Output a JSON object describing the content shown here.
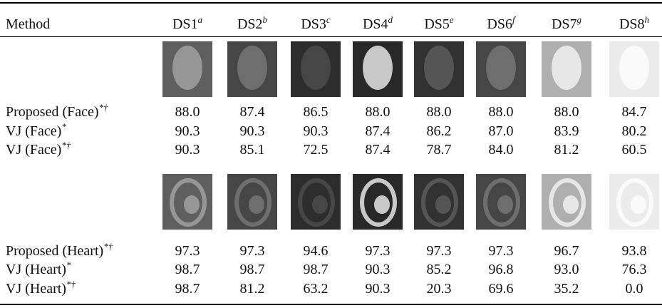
{
  "header": {
    "columns": [
      {
        "text": "Method"
      },
      {
        "text": "DS1",
        "sup": "a"
      },
      {
        "text": "DS2",
        "sup": "b"
      },
      {
        "text": "DS3",
        "sup": "c"
      },
      {
        "text": "DS4",
        "sup": "d"
      },
      {
        "text": "DS5",
        "sup": "e"
      },
      {
        "text": "DS6",
        "sup": "f"
      },
      {
        "text": "DS7",
        "sup": "g"
      },
      {
        "text": "DS8",
        "sup": "h"
      }
    ]
  },
  "sections": [
    {
      "kind": "face",
      "rows": [
        {
          "label": "Proposed (Face)",
          "sup": "*†",
          "values": [
            "88.0",
            "87.4",
            "86.5",
            "88.0",
            "88.0",
            "88.0",
            "88.0",
            "84.7"
          ]
        },
        {
          "label": "VJ (Face)",
          "sup": "*",
          "values": [
            "90.3",
            "90.3",
            "90.3",
            "87.4",
            "86.2",
            "87.0",
            "83.9",
            "80.2"
          ]
        },
        {
          "label": "VJ (Face)",
          "sup": "*†",
          "values": [
            "90.3",
            "85.1",
            "72.5",
            "87.4",
            "78.7",
            "84.0",
            "81.2",
            "60.5"
          ]
        }
      ]
    },
    {
      "kind": "heart",
      "rows": [
        {
          "label": "Proposed (Heart)",
          "sup": "*†",
          "values": [
            "97.3",
            "97.3",
            "94.6",
            "97.3",
            "97.3",
            "97.3",
            "96.7",
            "93.8"
          ]
        },
        {
          "label": "VJ (Heart)",
          "sup": "*",
          "values": [
            "98.7",
            "98.7",
            "98.7",
            "90.3",
            "85.2",
            "96.8",
            "93.0",
            "76.3"
          ]
        },
        {
          "label": "VJ (Heart)",
          "sup": "*†",
          "values": [
            "98.7",
            "81.2",
            "63.2",
            "90.3",
            "20.3",
            "69.6",
            "35.2",
            "0.0"
          ]
        }
      ]
    }
  ]
}
